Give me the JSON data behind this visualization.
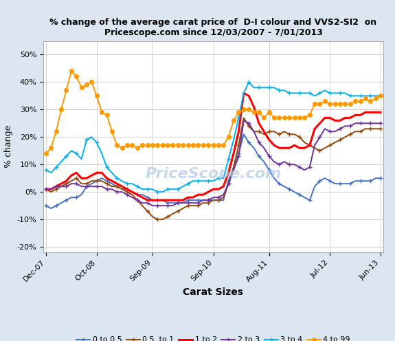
{
  "title_line1": "% change of the average carat price of  D-I colour and VVS2-SI2  on",
  "title_line2": "Pricescope.com since 12/03/2007 - 7/01/2013",
  "xlabel": "Carat Sizes",
  "ylabel": "% change",
  "background_color": "#dce6f1",
  "plot_bg_color": "#ffffff",
  "watermark": "PriceScope.com",
  "tick_labels": [
    "Dec-07",
    "Oct-08",
    "Sep-09",
    "Sep-10",
    "Aug-11",
    "Jul-12",
    "Jun-13"
  ],
  "tick_positions": [
    0,
    10,
    21,
    33,
    44,
    56,
    66
  ],
  "ylim": [
    -22,
    55
  ],
  "yticks": [
    -20,
    -10,
    0,
    10,
    20,
    30,
    40,
    50
  ],
  "n_points": 67,
  "series": {
    "0 to 0.5": {
      "color": "#4472C4",
      "marker": "+",
      "linewidth": 1.4,
      "markersize": 5,
      "markevery": 2,
      "values": [
        -5,
        -6,
        -5,
        -4,
        -3,
        -2,
        -2,
        -1,
        2,
        3,
        4,
        5,
        4,
        3,
        2,
        1,
        1,
        0,
        -1,
        -1,
        -2,
        -3,
        -3,
        -3,
        -4,
        -4,
        -4,
        -4,
        -3,
        -3,
        -3,
        -3,
        -3,
        -3,
        -3,
        -3,
        4,
        9,
        14,
        21,
        18,
        16,
        13,
        11,
        8,
        5,
        3,
        2,
        1,
        0,
        -1,
        -2,
        -3,
        2,
        4,
        5,
        4,
        3,
        3,
        3,
        3,
        4,
        4,
        4,
        4,
        5,
        5
      ]
    },
    "0.5 to 1": {
      "color": "#974706",
      "marker": "+",
      "linewidth": 1.4,
      "markersize": 5,
      "markevery": 2,
      "values": [
        1,
        0,
        1,
        2,
        3,
        4,
        5,
        3,
        3,
        4,
        4,
        4,
        3,
        2,
        2,
        1,
        0,
        -1,
        -3,
        -5,
        -7,
        -9,
        -10,
        -10,
        -9,
        -8,
        -7,
        -6,
        -5,
        -5,
        -5,
        -4,
        -4,
        -3,
        -3,
        -2,
        3,
        9,
        17,
        27,
        24,
        22,
        22,
        21,
        22,
        22,
        21,
        22,
        21,
        21,
        20,
        18,
        17,
        16,
        15,
        16,
        17,
        18,
        19,
        20,
        21,
        22,
        22,
        23,
        23,
        23,
        23
      ]
    },
    "1 to 2": {
      "color": "#FF0000",
      "marker": null,
      "linewidth": 2.2,
      "markersize": 0,
      "markevery": 1,
      "values": [
        1,
        1,
        2,
        3,
        4,
        6,
        7,
        5,
        5,
        6,
        7,
        7,
        5,
        4,
        3,
        2,
        1,
        0,
        -1,
        -2,
        -3,
        -3,
        -3,
        -3,
        -3,
        -3,
        -3,
        -3,
        -2,
        -2,
        -1,
        -1,
        0,
        1,
        1,
        2,
        7,
        14,
        22,
        36,
        35,
        31,
        25,
        22,
        19,
        17,
        16,
        16,
        16,
        17,
        16,
        16,
        17,
        23,
        25,
        27,
        27,
        26,
        26,
        27,
        27,
        28,
        28,
        29,
        29,
        29,
        29
      ]
    },
    "2 to 3": {
      "color": "#7030A0",
      "marker": "+",
      "linewidth": 1.4,
      "markersize": 5,
      "markevery": 2,
      "values": [
        1,
        1,
        2,
        2,
        2,
        3,
        3,
        2,
        2,
        2,
        2,
        2,
        1,
        1,
        0,
        0,
        -1,
        -2,
        -3,
        -4,
        -4,
        -5,
        -5,
        -5,
        -5,
        -5,
        -4,
        -4,
        -4,
        -4,
        -4,
        -3,
        -3,
        -2,
        -2,
        -1,
        3,
        8,
        13,
        26,
        25,
        22,
        18,
        16,
        13,
        11,
        10,
        11,
        10,
        10,
        9,
        8,
        9,
        17,
        20,
        23,
        22,
        22,
        23,
        24,
        24,
        25,
        25,
        25,
        25,
        25,
        25
      ]
    },
    "3 to 4": {
      "color": "#00B0F0",
      "marker": "+",
      "linewidth": 1.4,
      "markersize": 5,
      "markevery": 2,
      "values": [
        8,
        7,
        9,
        11,
        13,
        15,
        14,
        12,
        19,
        20,
        18,
        14,
        9,
        7,
        5,
        4,
        3,
        3,
        2,
        1,
        1,
        1,
        0,
        0,
        1,
        1,
        1,
        2,
        3,
        4,
        4,
        4,
        4,
        4,
        5,
        5,
        12,
        19,
        27,
        36,
        40,
        38,
        38,
        38,
        38,
        38,
        37,
        37,
        36,
        36,
        36,
        36,
        36,
        35,
        36,
        37,
        36,
        36,
        36,
        36,
        35,
        35,
        35,
        35,
        35,
        35,
        35
      ]
    },
    "4 to 99": {
      "color": "#FF9900",
      "marker": "o",
      "linewidth": 1.4,
      "markersize": 4,
      "markevery": 1,
      "values": [
        14,
        16,
        22,
        30,
        37,
        44,
        42,
        38,
        39,
        40,
        35,
        29,
        28,
        22,
        17,
        16,
        17,
        17,
        16,
        17,
        17,
        17,
        17,
        17,
        17,
        17,
        17,
        17,
        17,
        17,
        17,
        17,
        17,
        17,
        17,
        17,
        20,
        26,
        29,
        30,
        30,
        29,
        29,
        27,
        29,
        27,
        27,
        27,
        27,
        27,
        27,
        27,
        28,
        32,
        32,
        33,
        32,
        32,
        32,
        32,
        32,
        33,
        33,
        34,
        33,
        34,
        35
      ]
    }
  },
  "series_keys": [
    "0 to 0.5",
    "0.5 to 1",
    "1 to 2",
    "2 to 3",
    "3 to 4",
    "4 to 99"
  ],
  "legend_labels": [
    "0 to 0.5",
    "0.5  to 1",
    "1 to 2",
    "2 to 3",
    "3 to 4",
    "4 to 99"
  ]
}
